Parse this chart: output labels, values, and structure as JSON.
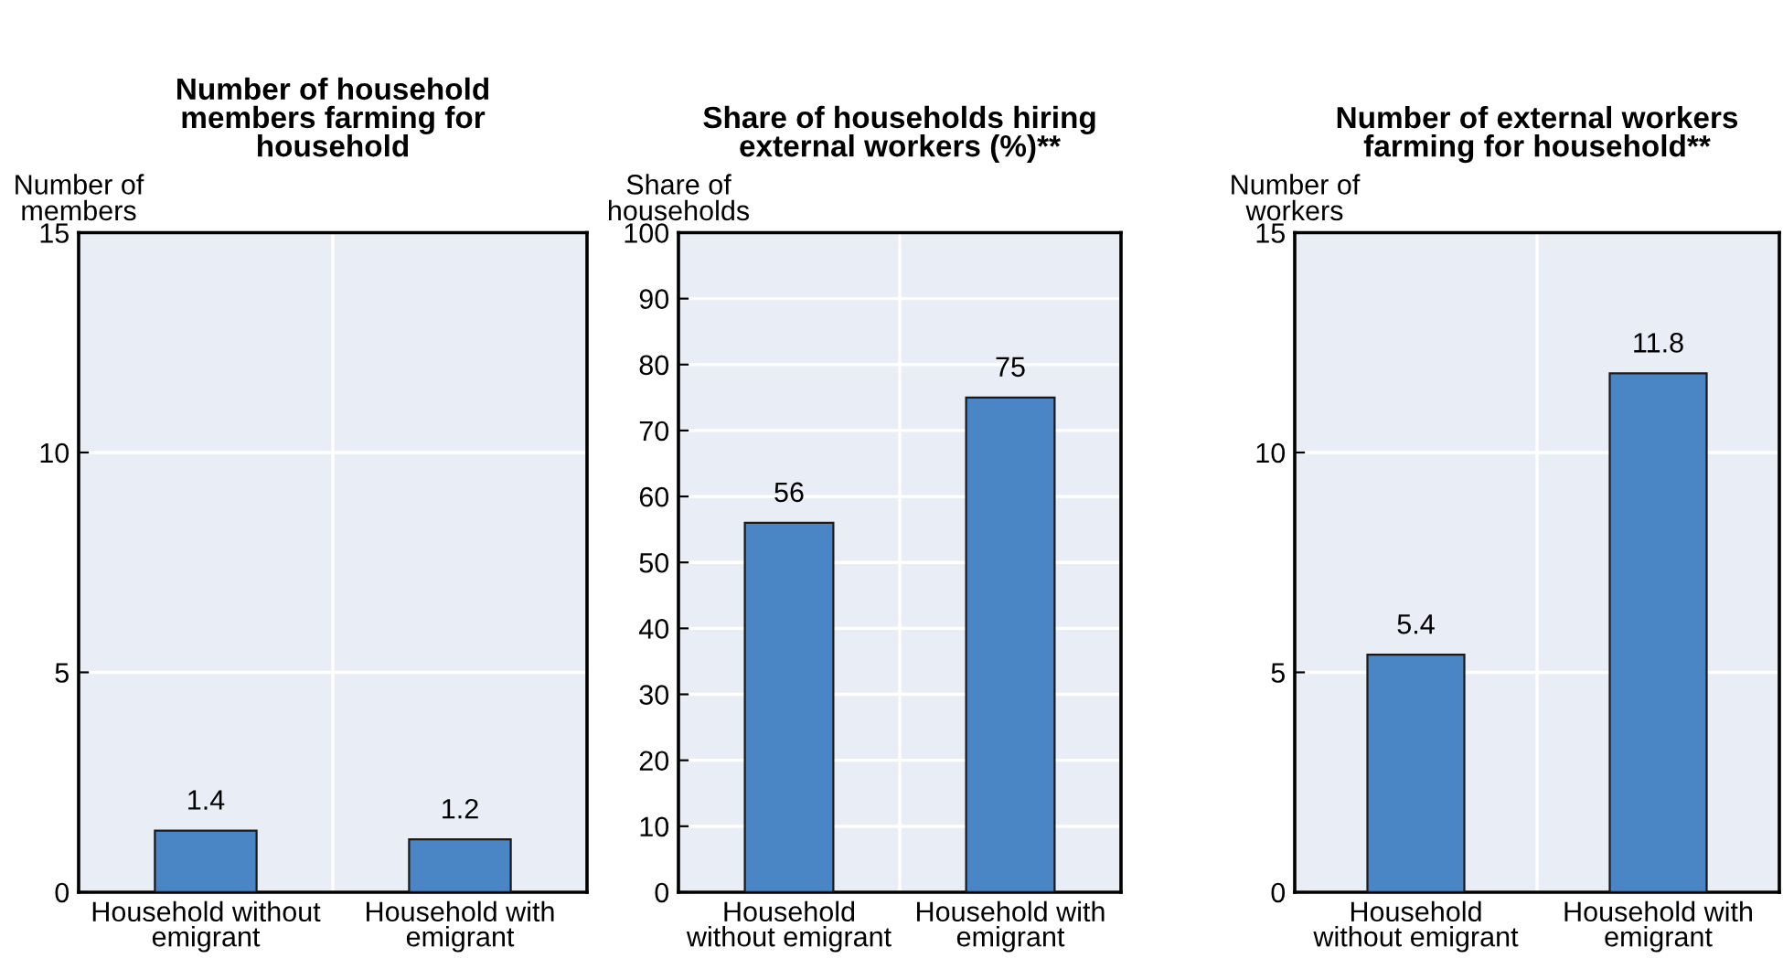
{
  "chart_data": [
    {
      "type": "bar",
      "title": "Number of household\nmembers farming for\nhousehold",
      "ylabel": "Number of\nmembers",
      "categories": [
        "Household without\nemigrant",
        "Household with\nemigrant"
      ],
      "values": [
        1.4,
        1.2
      ],
      "color": "#4a86c5",
      "ylim": [
        0,
        15
      ],
      "yticks": [
        0,
        5,
        10,
        15
      ],
      "grid": true,
      "data_labels": true
    },
    {
      "type": "bar",
      "title": "Share of households hiring\nexternal workers (%)**",
      "ylabel": "Share of\nhouseholds",
      "categories": [
        "Household\nwithout emigrant",
        "Household with\nemigrant"
      ],
      "values": [
        56,
        75
      ],
      "color": "#4a86c5",
      "ylim": [
        0,
        100
      ],
      "yticks": [
        0,
        10,
        20,
        30,
        40,
        50,
        60,
        70,
        80,
        90,
        100
      ],
      "grid": true,
      "data_labels": true
    },
    {
      "type": "bar",
      "title": "Number of external workers\nfarming for household**",
      "ylabel": "Number of\nworkers",
      "categories": [
        "Household\nwithout emigrant",
        "Household with\nemigrant"
      ],
      "values": [
        5.4,
        11.8
      ],
      "color": "#4a86c5",
      "ylim": [
        0,
        15
      ],
      "yticks": [
        0,
        5,
        10,
        15
      ],
      "grid": true,
      "data_labels": true
    }
  ]
}
